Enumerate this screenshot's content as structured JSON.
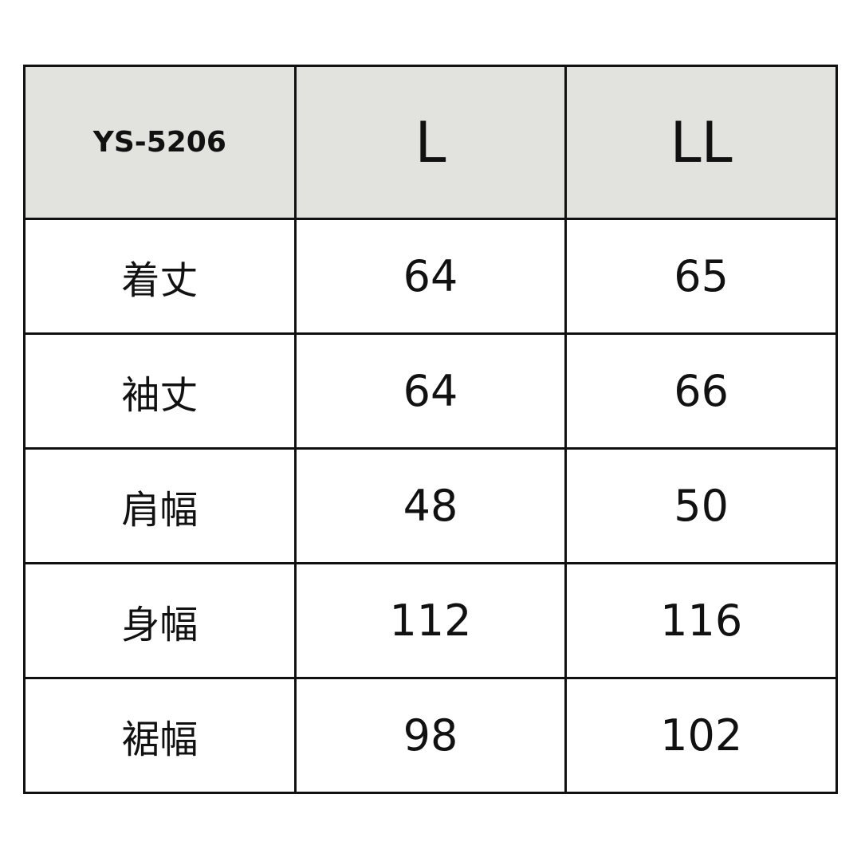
{
  "chart_data": {
    "type": "table",
    "header": {
      "model": "YS-5206",
      "sizes": [
        "L",
        "LL"
      ]
    },
    "rows": [
      {
        "label": "着丈",
        "values": [
          "64",
          "65"
        ]
      },
      {
        "label": "袖丈",
        "values": [
          "64",
          "66"
        ]
      },
      {
        "label": "肩幅",
        "values": [
          "48",
          "50"
        ]
      },
      {
        "label": "身幅",
        "values": [
          "112",
          "116"
        ]
      },
      {
        "label": "裾幅",
        "values": [
          "98",
          "102"
        ]
      }
    ]
  },
  "colors": {
    "header_bg": "#e2e2de",
    "border": "#111111"
  }
}
